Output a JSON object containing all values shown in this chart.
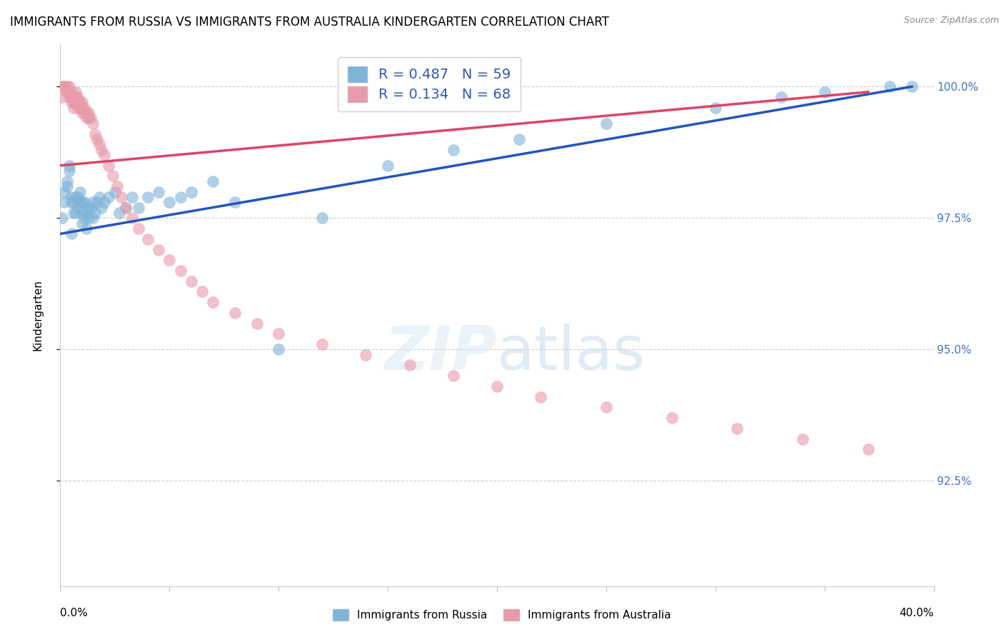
{
  "title": "IMMIGRANTS FROM RUSSIA VS IMMIGRANTS FROM AUSTRALIA KINDERGARTEN CORRELATION CHART",
  "source": "Source: ZipAtlas.com",
  "ylabel": "Kindergarten",
  "ytick_labels": [
    "100.0%",
    "97.5%",
    "95.0%",
    "92.5%"
  ],
  "ytick_values": [
    1.0,
    0.975,
    0.95,
    0.925
  ],
  "xlim": [
    0.0,
    0.4
  ],
  "ylim": [
    0.905,
    1.008
  ],
  "legend_russia_R": 0.487,
  "legend_russia_N": 59,
  "legend_australia_R": 0.134,
  "legend_australia_N": 68,
  "russia_color": "#7fb3d8",
  "australia_color": "#e899aa",
  "russia_line_color": "#2255bb",
  "australia_line_color": "#dd4466",
  "russia_x": [
    0.001,
    0.002,
    0.002,
    0.003,
    0.003,
    0.004,
    0.004,
    0.005,
    0.005,
    0.005,
    0.006,
    0.006,
    0.007,
    0.007,
    0.008,
    0.008,
    0.009,
    0.009,
    0.01,
    0.01,
    0.01,
    0.011,
    0.011,
    0.012,
    0.012,
    0.013,
    0.013,
    0.014,
    0.015,
    0.015,
    0.016,
    0.017,
    0.018,
    0.019,
    0.02,
    0.022,
    0.025,
    0.027,
    0.03,
    0.033,
    0.036,
    0.04,
    0.045,
    0.05,
    0.055,
    0.06,
    0.07,
    0.08,
    0.1,
    0.12,
    0.15,
    0.18,
    0.21,
    0.25,
    0.3,
    0.33,
    0.35,
    0.38,
    0.39
  ],
  "russia_y": [
    0.975,
    0.978,
    0.98,
    0.981,
    0.982,
    0.984,
    0.985,
    0.972,
    0.978,
    0.979,
    0.976,
    0.978,
    0.976,
    0.979,
    0.977,
    0.979,
    0.978,
    0.98,
    0.974,
    0.976,
    0.978,
    0.975,
    0.978,
    0.973,
    0.976,
    0.975,
    0.977,
    0.977,
    0.975,
    0.978,
    0.976,
    0.978,
    0.979,
    0.977,
    0.978,
    0.979,
    0.98,
    0.976,
    0.977,
    0.979,
    0.977,
    0.979,
    0.98,
    0.978,
    0.979,
    0.98,
    0.982,
    0.978,
    0.95,
    0.975,
    0.985,
    0.988,
    0.99,
    0.993,
    0.996,
    0.998,
    0.999,
    1.0,
    1.0
  ],
  "australia_x": [
    0.001,
    0.001,
    0.002,
    0.002,
    0.003,
    0.003,
    0.003,
    0.004,
    0.004,
    0.004,
    0.005,
    0.005,
    0.005,
    0.006,
    0.006,
    0.006,
    0.007,
    0.007,
    0.007,
    0.008,
    0.008,
    0.008,
    0.009,
    0.009,
    0.01,
    0.01,
    0.01,
    0.011,
    0.011,
    0.012,
    0.012,
    0.013,
    0.013,
    0.014,
    0.015,
    0.016,
    0.017,
    0.018,
    0.019,
    0.02,
    0.022,
    0.024,
    0.026,
    0.028,
    0.03,
    0.033,
    0.036,
    0.04,
    0.045,
    0.05,
    0.055,
    0.06,
    0.065,
    0.07,
    0.08,
    0.09,
    0.1,
    0.12,
    0.14,
    0.16,
    0.18,
    0.2,
    0.22,
    0.25,
    0.28,
    0.31,
    0.34,
    0.37
  ],
  "australia_y": [
    0.998,
    1.0,
    1.0,
    1.0,
    1.0,
    0.999,
    0.999,
    0.998,
    0.999,
    1.0,
    0.997,
    0.998,
    0.999,
    0.996,
    0.997,
    0.998,
    0.997,
    0.998,
    0.999,
    0.996,
    0.997,
    0.998,
    0.996,
    0.997,
    0.995,
    0.996,
    0.997,
    0.995,
    0.996,
    0.994,
    0.995,
    0.994,
    0.995,
    0.994,
    0.993,
    0.991,
    0.99,
    0.989,
    0.988,
    0.987,
    0.985,
    0.983,
    0.981,
    0.979,
    0.977,
    0.975,
    0.973,
    0.971,
    0.969,
    0.967,
    0.965,
    0.963,
    0.961,
    0.959,
    0.957,
    0.955,
    0.953,
    0.951,
    0.949,
    0.947,
    0.945,
    0.943,
    0.941,
    0.939,
    0.937,
    0.935,
    0.933,
    0.931
  ],
  "russia_line_x": [
    0.0,
    0.39
  ],
  "russia_line_y": [
    0.972,
    1.0
  ],
  "australia_line_x": [
    0.0,
    0.37
  ],
  "australia_line_y": [
    0.985,
    0.999
  ]
}
